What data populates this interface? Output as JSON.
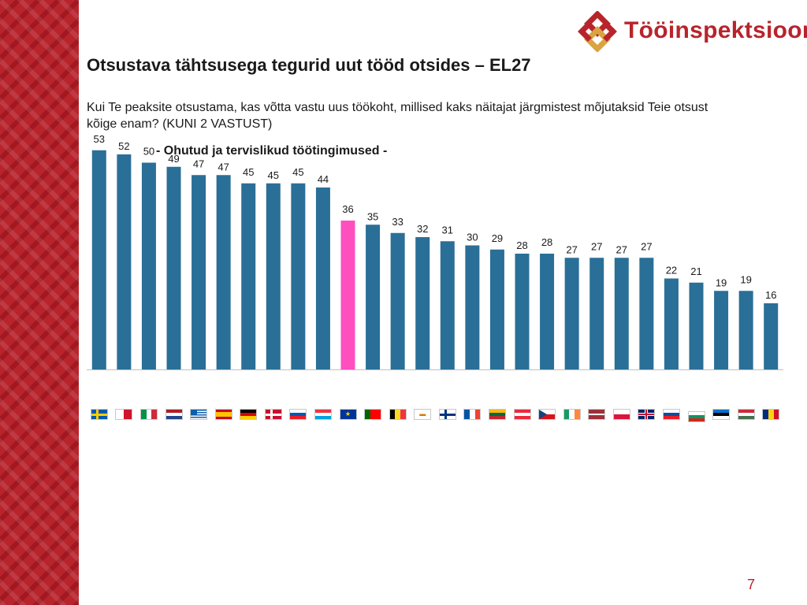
{
  "brand": {
    "name": "Tööinspektsioon",
    "accent": "#b8242c"
  },
  "title": "Otsustava tähtsusega tegurid uut tööd otsides – EL27",
  "question": "Kui Te peaksite otsustama, kas võtta vastu uus töökoht, millised kaks näitajat järgmistest mõjutaksid Teie otsust kõige enam? (KUNI 2 VASTUST)",
  "subtitle": "- Ohutud ja tervislikud töötingimused -",
  "page_number": "7",
  "colors": {
    "bar": "#2a6f97",
    "highlight": "#ff4fbf",
    "axis": "#c0c0c0"
  },
  "chart_data": {
    "type": "bar",
    "categories": [
      "SE",
      "MT",
      "IT",
      "NL",
      "GR",
      "ES",
      "DE",
      "DK",
      "SI",
      "LU",
      "EU27",
      "PT",
      "BE",
      "CY",
      "FI",
      "FR",
      "LT",
      "AT",
      "CZ",
      "IE",
      "LV",
      "PL",
      "UK",
      "SK",
      "BG",
      "EE",
      "HU",
      "RO"
    ],
    "values": [
      53,
      52,
      50,
      49,
      47,
      47,
      45,
      45,
      45,
      44,
      36,
      35,
      33,
      32,
      31,
      30,
      29,
      28,
      28,
      27,
      27,
      27,
      27,
      22,
      21,
      19,
      19,
      16
    ],
    "highlight_index": 10,
    "ylim": [
      0,
      60
    ],
    "grid": false,
    "data_labels": true
  },
  "flags": [
    {
      "code": "SE",
      "icon": "sweden-flag-icon"
    },
    {
      "code": "MT",
      "icon": "malta-flag-icon"
    },
    {
      "code": "IT",
      "icon": "italy-flag-icon"
    },
    {
      "code": "NL",
      "icon": "netherlands-flag-icon"
    },
    {
      "code": "GR",
      "icon": "greece-flag-icon"
    },
    {
      "code": "ES",
      "icon": "spain-flag-icon"
    },
    {
      "code": "DE",
      "icon": "germany-flag-icon"
    },
    {
      "code": "DK",
      "icon": "denmark-flag-icon"
    },
    {
      "code": "SI",
      "icon": "slovenia-flag-icon"
    },
    {
      "code": "LU",
      "icon": "luxembourg-flag-icon"
    },
    {
      "code": "EU27",
      "icon": "eu-flag-icon"
    },
    {
      "code": "PT",
      "icon": "portugal-flag-icon"
    },
    {
      "code": "BE",
      "icon": "belgium-flag-icon"
    },
    {
      "code": "CY",
      "icon": "cyprus-flag-icon"
    },
    {
      "code": "FI",
      "icon": "finland-flag-icon"
    },
    {
      "code": "FR",
      "icon": "france-flag-icon"
    },
    {
      "code": "LT",
      "icon": "lithuania-flag-icon"
    },
    {
      "code": "AT",
      "icon": "austria-flag-icon"
    },
    {
      "code": "CZ",
      "icon": "czechia-flag-icon"
    },
    {
      "code": "IE",
      "icon": "ireland-flag-icon"
    },
    {
      "code": "LV",
      "icon": "latvia-flag-icon"
    },
    {
      "code": "PL",
      "icon": "poland-flag-icon"
    },
    {
      "code": "UK",
      "icon": "uk-flag-icon"
    },
    {
      "code": "SK",
      "icon": "slovakia-flag-icon"
    },
    {
      "code": "BG",
      "icon": "bulgaria-flag-icon"
    },
    {
      "code": "EE",
      "icon": "estonia-flag-icon"
    },
    {
      "code": "HU",
      "icon": "hungary-flag-icon"
    },
    {
      "code": "RO",
      "icon": "romania-flag-icon"
    }
  ]
}
